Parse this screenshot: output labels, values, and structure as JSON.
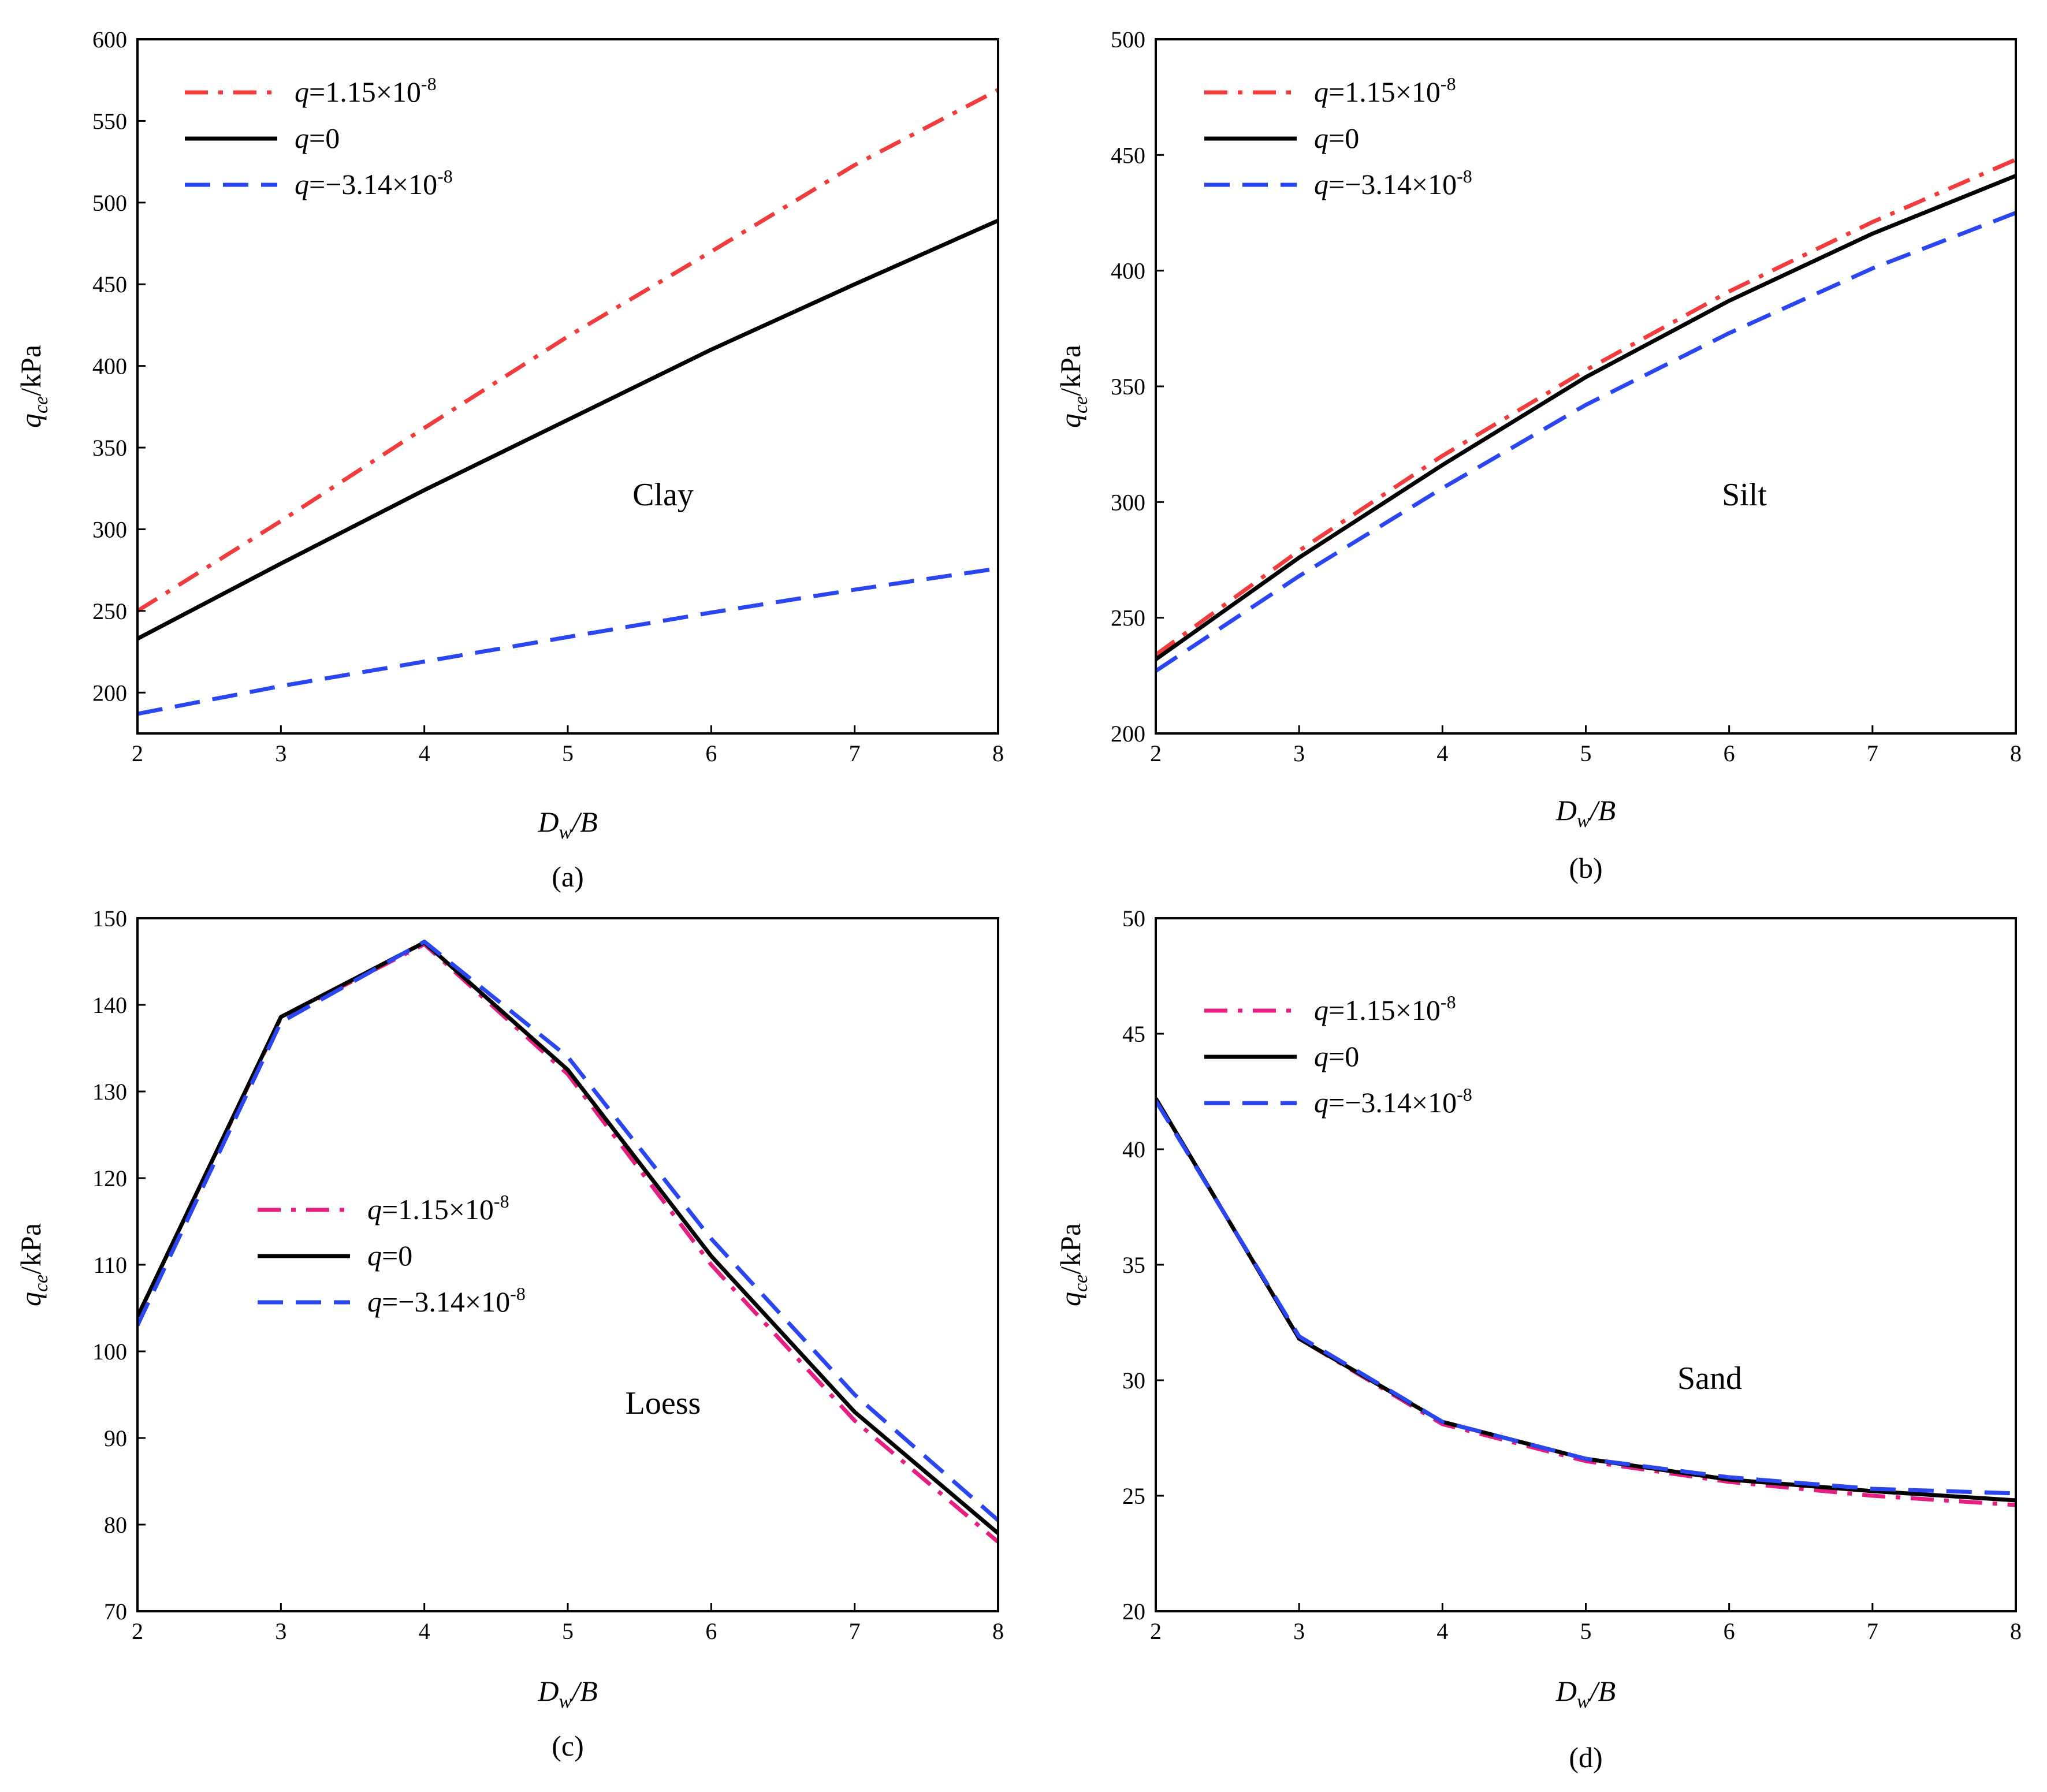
{
  "colors": {
    "positive": "#f03c3c",
    "zero": "#000000",
    "negative": "#2a46f0",
    "positive_magenta": "#e61e82"
  },
  "legend_labels": {
    "q_symbol": "q",
    "pos_value": "=1.15×10",
    "pos_exp": "-8",
    "zero_value": "=0",
    "neg_value": "=−3.14×10",
    "neg_exp": "-8"
  },
  "chart_data": [
    {
      "type": "line",
      "panel_label": "(a)",
      "annotation": "Clay",
      "ylabel_main": "q",
      "ylabel_sub": "ce",
      "ylabel_unit": "/kPa",
      "xlabel_main": "D",
      "xlabel_sub": "w",
      "xlabel_rest": "/B",
      "xlim": [
        2,
        8
      ],
      "ylim": [
        175,
        600
      ],
      "xticks": [
        2,
        3,
        4,
        5,
        6,
        7,
        8
      ],
      "yticks": [
        200,
        250,
        300,
        350,
        400,
        450,
        500,
        550,
        600
      ],
      "legend_position": "top-left",
      "x": [
        2,
        3,
        4,
        5,
        6,
        7,
        8
      ],
      "series": [
        {
          "key": "pos",
          "name": "q=1.15×10-8",
          "color_key": "positive",
          "style": "dashdot",
          "values": [
            250,
            305,
            362,
            418,
            470,
            523,
            569
          ]
        },
        {
          "key": "zero",
          "name": "q=0",
          "color_key": "zero",
          "style": "solid",
          "values": [
            233,
            279,
            324,
            367,
            410,
            450,
            489
          ]
        },
        {
          "key": "neg",
          "name": "q=−3.14×10-8",
          "color_key": "negative",
          "style": "dashed",
          "values": [
            187,
            204,
            219,
            234,
            249,
            263,
            276
          ]
        }
      ]
    },
    {
      "type": "line",
      "panel_label": "(b)",
      "annotation": "Silt",
      "ylabel_main": "q",
      "ylabel_sub": "ce",
      "ylabel_unit": "/kPa",
      "xlabel_main": "D",
      "xlabel_sub": "w",
      "xlabel_rest": "/B",
      "xlim": [
        2,
        8
      ],
      "ylim": [
        200,
        500
      ],
      "xticks": [
        2,
        3,
        4,
        5,
        6,
        7,
        8
      ],
      "yticks": [
        200,
        250,
        300,
        350,
        400,
        450,
        500
      ],
      "legend_position": "top-left",
      "x": [
        2,
        3,
        4,
        5,
        6,
        7,
        8
      ],
      "series": [
        {
          "key": "pos",
          "name": "q=1.15×10-8",
          "color_key": "positive",
          "style": "dashdot",
          "values": [
            234,
            279,
            320,
            357,
            391,
            421,
            448
          ]
        },
        {
          "key": "zero",
          "name": "q=0",
          "color_key": "zero",
          "style": "solid",
          "values": [
            232,
            276,
            316,
            354,
            387,
            416,
            441
          ]
        },
        {
          "key": "neg",
          "name": "q=−3.14×10-8",
          "color_key": "negative",
          "style": "dashed",
          "values": [
            227,
            268,
            306,
            342,
            373,
            401,
            425
          ]
        }
      ]
    },
    {
      "type": "line",
      "panel_label": "(c)",
      "annotation": "Loess",
      "ylabel_main": "q",
      "ylabel_sub": "ce",
      "ylabel_unit": "/kPa",
      "xlabel_main": "D",
      "xlabel_sub": "w",
      "xlabel_rest": "/B",
      "xlim": [
        2,
        8
      ],
      "ylim": [
        70,
        150
      ],
      "xticks": [
        2,
        3,
        4,
        5,
        6,
        7,
        8
      ],
      "yticks": [
        70,
        80,
        90,
        100,
        110,
        120,
        130,
        140,
        150
      ],
      "legend_position": "center-left",
      "x": [
        2,
        3,
        4,
        5,
        6,
        7,
        8
      ],
      "series": [
        {
          "key": "pos",
          "name": "q=1.15×10-8",
          "color_key": "positive_magenta",
          "style": "dashdot",
          "values": [
            104,
            138.5,
            147,
            132,
            110,
            92,
            78
          ]
        },
        {
          "key": "zero",
          "name": "q=0",
          "color_key": "zero",
          "style": "solid",
          "values": [
            104,
            138.6,
            147.2,
            132.5,
            111,
            93,
            79
          ]
        },
        {
          "key": "neg",
          "name": "q=−3.14×10-8",
          "color_key": "negative",
          "style": "dashed",
          "values": [
            103,
            138,
            147.3,
            134,
            113,
            95,
            80.5
          ]
        }
      ]
    },
    {
      "type": "line",
      "panel_label": "(d)",
      "annotation": "Sand",
      "ylabel_main": "q",
      "ylabel_sub": "ce",
      "ylabel_unit": "/kPa",
      "xlabel_main": "D",
      "xlabel_sub": "w",
      "xlabel_rest": "/B",
      "xlim": [
        2,
        8
      ],
      "ylim": [
        20,
        50
      ],
      "xticks": [
        2,
        3,
        4,
        5,
        6,
        7,
        8
      ],
      "yticks": [
        20,
        25,
        30,
        35,
        40,
        45,
        50
      ],
      "legend_position": "top-left",
      "x": [
        2,
        3,
        4,
        5,
        6,
        7,
        8
      ],
      "series": [
        {
          "key": "pos",
          "name": "q=1.15×10-8",
          "color_key": "positive_magenta",
          "style": "dashdot",
          "values": [
            42.2,
            31.8,
            28.1,
            26.5,
            25.6,
            25.0,
            24.6
          ]
        },
        {
          "key": "zero",
          "name": "q=0",
          "color_key": "zero",
          "style": "solid",
          "values": [
            42.2,
            31.8,
            28.2,
            26.6,
            25.7,
            25.2,
            24.8
          ]
        },
        {
          "key": "neg",
          "name": "q=−3.14×10-8",
          "color_key": "negative",
          "style": "dashed",
          "values": [
            42.1,
            31.9,
            28.2,
            26.6,
            25.8,
            25.3,
            25.1
          ]
        }
      ]
    }
  ]
}
